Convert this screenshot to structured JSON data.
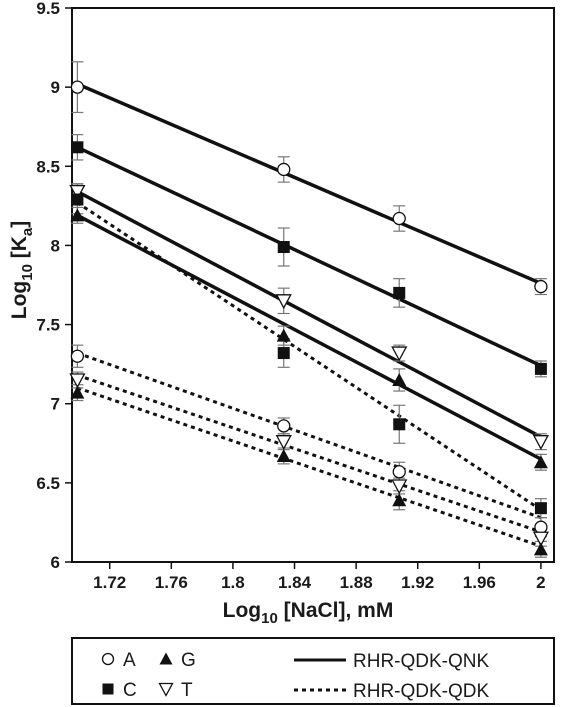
{
  "chart_data": {
    "type": "scatter",
    "xlabel_main": "Log",
    "xlabel_sub": "10",
    "xlabel_rest": " [NaCl], mM",
    "ylabel_main": "Log",
    "ylabel_sub": "10",
    "ylabel_rest1": " [K",
    "ylabel_sub2": "a",
    "ylabel_rest2": "]",
    "xlim": [
      1.7,
      2.0
    ],
    "ylim": [
      6,
      9.5
    ],
    "xticks": [
      "1.72",
      "1.76",
      "1.8",
      "1.84",
      "1.88",
      "1.92",
      "1.96",
      "2"
    ],
    "xtick_values": [
      1.72,
      1.76,
      1.8,
      1.84,
      1.88,
      1.92,
      1.96,
      2.0
    ],
    "yticks": [
      "6",
      "6.5",
      "7",
      "7.5",
      "8",
      "8.5",
      "9",
      "9.5"
    ],
    "ytick_values": [
      6,
      6.5,
      7,
      7.5,
      8,
      8.5,
      9,
      9.5
    ],
    "x": [
      1.699,
      1.833,
      1.908,
      2.0
    ],
    "series": [
      {
        "name": "A",
        "protein": "RHR-QDK-QNK",
        "marker": "circle-open",
        "values": [
          9.0,
          8.48,
          8.17,
          7.74
        ],
        "err": [
          0.16,
          0.08,
          0.08,
          0.05
        ],
        "fit": [
          9.02,
          7.76
        ]
      },
      {
        "name": "C",
        "protein": "RHR-QDK-QNK",
        "marker": "square-filled",
        "values": [
          8.62,
          7.99,
          7.7,
          7.22
        ],
        "err": [
          0.08,
          0.12,
          0.09,
          0.05
        ],
        "fit": [
          8.62,
          7.24
        ]
      },
      {
        "name": "T",
        "protein": "RHR-QDK-QNK",
        "marker": "triangle-down-open",
        "values": [
          8.34,
          7.65,
          7.32,
          6.76
        ],
        "err": [
          0.05,
          0.08,
          0.05,
          0.05
        ],
        "fit": [
          8.34,
          6.79
        ]
      },
      {
        "name": "G",
        "protein": "RHR-QDK-QNK",
        "marker": "triangle-up-filled",
        "values": [
          8.19,
          7.43,
          7.15,
          6.63
        ],
        "err": [
          0.05,
          0.06,
          0.07,
          0.05
        ],
        "fit": [
          8.19,
          6.65
        ]
      },
      {
        "name": "C",
        "protein": "RHR-QDK-QDK",
        "marker": "square-filled",
        "values": [
          8.29,
          7.32,
          6.87,
          6.34
        ],
        "err": [
          0.09,
          0.09,
          0.12,
          0.06
        ],
        "fit": [
          8.27,
          6.33
        ]
      },
      {
        "name": "A",
        "protein": "RHR-QDK-QDK",
        "marker": "circle-open",
        "values": [
          7.3,
          6.86,
          6.57,
          6.22
        ],
        "err": [
          0.07,
          0.05,
          0.06,
          0.06
        ],
        "fit": [
          7.32,
          6.28
        ]
      },
      {
        "name": "T",
        "protein": "RHR-QDK-QDK",
        "marker": "triangle-down-open",
        "values": [
          7.15,
          6.76,
          6.48,
          6.15
        ],
        "err": [
          0.05,
          0.05,
          0.05,
          0.05
        ],
        "fit": [
          7.18,
          6.19
        ]
      },
      {
        "name": "G",
        "protein": "RHR-QDK-QDK",
        "marker": "triangle-up-filled",
        "values": [
          7.07,
          6.67,
          6.39,
          6.08
        ],
        "err": [
          0.05,
          0.05,
          0.06,
          0.05
        ],
        "fit": [
          7.1,
          6.1
        ]
      }
    ],
    "legend": {
      "placement": "bottom",
      "markers": [
        {
          "label": "A",
          "marker": "circle-open"
        },
        {
          "label": "G",
          "marker": "triangle-up-filled"
        },
        {
          "label": "C",
          "marker": "square-filled"
        },
        {
          "label": "T",
          "marker": "triangle-down-open"
        }
      ],
      "lines": [
        {
          "label": "RHR-QDK-QNK",
          "style": "solid"
        },
        {
          "label": "RHR-QDK-QDK",
          "style": "dotted"
        }
      ]
    },
    "grid": false,
    "colors": {
      "ink": "#111111",
      "error_bar": "#777777",
      "background": "#ffffff"
    }
  }
}
